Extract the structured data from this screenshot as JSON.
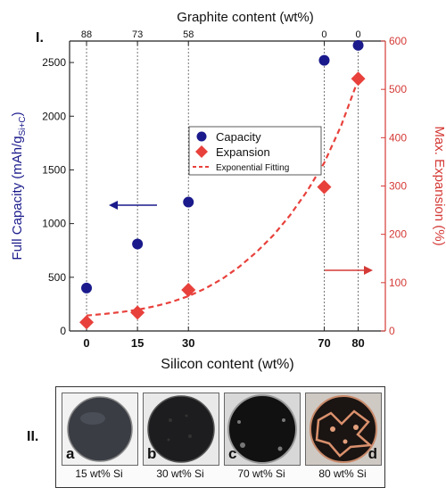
{
  "panel_labels": {
    "top": "I.",
    "bottom": "II."
  },
  "chart_data": {
    "type": "scatter",
    "x_label": "Silicon content (wt%)",
    "top_axis_label": "Graphite content (wt%)",
    "y_left_label": "Full Capacity (mAh/g",
    "y_left_label_sub": "Si+C",
    "y_left_label_end": ")",
    "y_right_label": "Max. Expansion (%)",
    "x_ticks": [
      0,
      15,
      30,
      70,
      80
    ],
    "x_tick_labels": [
      "0",
      "15",
      "30",
      "70",
      "80"
    ],
    "top_ticks": [
      "88",
      "73",
      "58",
      "0",
      "0"
    ],
    "y_left_ticks": [
      0,
      500,
      1000,
      1500,
      2000,
      2500
    ],
    "y_right_ticks": [
      0,
      100,
      200,
      300,
      400,
      500,
      600
    ],
    "y_left_lim": [
      0,
      2700
    ],
    "y_right_lim": [
      0,
      600
    ],
    "colors": {
      "capacity": "#1a1a8c",
      "expansion": "#e8413c",
      "axis_right": "#d43a36"
    },
    "series": [
      {
        "name": "Capacity",
        "axis": "left",
        "marker": "circle",
        "x": [
          0,
          15,
          30,
          70,
          80
        ],
        "y": [
          400,
          810,
          1200,
          2520,
          2660
        ]
      },
      {
        "name": "Expansion",
        "axis": "right",
        "marker": "diamond",
        "x": [
          0,
          15,
          30,
          70,
          80
        ],
        "y": [
          18,
          38,
          85,
          298,
          522
        ]
      },
      {
        "name": "Exponential Fitting",
        "axis": "right",
        "style": "dashed",
        "x": [
          0,
          5,
          10,
          15,
          20,
          25,
          30,
          35,
          40,
          45,
          50,
          55,
          60,
          65,
          70,
          75,
          80
        ],
        "y": [
          32,
          35,
          39,
          44,
          51,
          60,
          72,
          88,
          108,
          133,
          163,
          198,
          240,
          290,
          348,
          425,
          520
        ]
      }
    ],
    "legend": [
      "Capacity",
      "Expansion",
      "Exponential Fitting"
    ],
    "annotations": [
      "left-arrow pointing to capacity axis",
      "right-arrow pointing to expansion axis"
    ]
  },
  "photos": [
    {
      "letter": "a",
      "caption": "15 wt% Si",
      "letter_side": "left"
    },
    {
      "letter": "b",
      "caption": "30 wt% Si",
      "letter_side": "left"
    },
    {
      "letter": "c",
      "caption": "70 wt% Si",
      "letter_side": "left"
    },
    {
      "letter": "d",
      "caption": "80 wt% Si",
      "letter_side": "right"
    }
  ]
}
